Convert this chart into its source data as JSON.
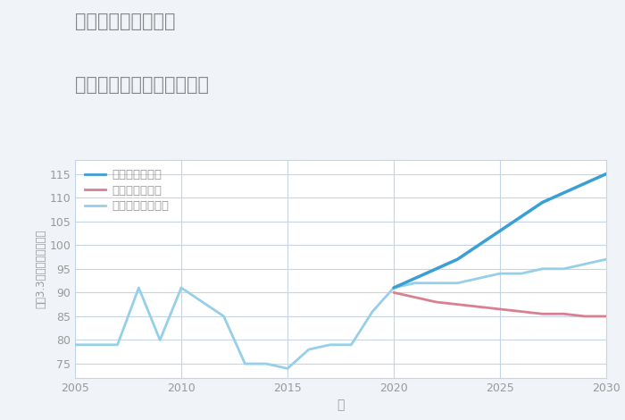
{
  "title_line1": "千葉県市原市栢橋の",
  "title_line2": "中古マンションの価格推移",
  "xlabel": "年",
  "ylabel": "坪（3.3㎡）単価（万円）",
  "ylim": [
    72,
    118
  ],
  "xlim": [
    2005,
    2030
  ],
  "yticks": [
    75,
    80,
    85,
    90,
    95,
    100,
    105,
    110,
    115
  ],
  "xticks": [
    2005,
    2010,
    2015,
    2020,
    2025,
    2030
  ],
  "background_color": "#f0f4f8",
  "plot_bg_color": "#ffffff",
  "grid_color": "#c5d5e5",
  "title_color": "#888888",
  "axis_color": "#999999",
  "normal_scenario": {
    "x": [
      2005,
      2006,
      2007,
      2008,
      2009,
      2010,
      2011,
      2012,
      2013,
      2014,
      2015,
      2016,
      2017,
      2018,
      2019,
      2020,
      2021,
      2022,
      2023,
      2024,
      2025,
      2026,
      2027,
      2028,
      2029,
      2030
    ],
    "y": [
      79,
      79,
      79,
      91,
      80,
      91,
      88,
      85,
      75,
      75,
      74,
      78,
      79,
      79,
      86,
      91,
      92,
      92,
      92,
      93,
      94,
      94,
      95,
      95,
      96,
      97
    ],
    "color": "#95cfe8",
    "linewidth": 2.0,
    "label": "ノーマルシナリオ"
  },
  "good_scenario": {
    "x": [
      2020,
      2021,
      2022,
      2023,
      2024,
      2025,
      2026,
      2027,
      2028,
      2029,
      2030
    ],
    "y": [
      91,
      93,
      95,
      97,
      100,
      103,
      106,
      109,
      111,
      113,
      115
    ],
    "color": "#3a9fd4",
    "linewidth": 2.5,
    "label": "グッドシナリオ"
  },
  "bad_scenario": {
    "x": [
      2020,
      2021,
      2022,
      2023,
      2024,
      2025,
      2026,
      2027,
      2028,
      2029,
      2030
    ],
    "y": [
      90,
      89,
      88,
      87.5,
      87,
      86.5,
      86,
      85.5,
      85.5,
      85,
      85
    ],
    "color": "#d98090",
    "linewidth": 2.0,
    "label": "バッドシナリオ"
  },
  "legend_order": [
    "good_scenario",
    "bad_scenario",
    "normal_scenario"
  ],
  "legend_fontsize": 9.5
}
